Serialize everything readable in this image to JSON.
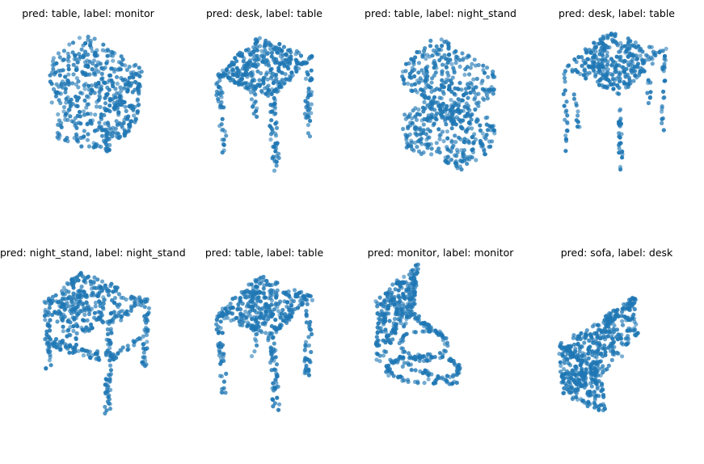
{
  "figure": {
    "point_color": "#1f77b4"
  },
  "chart_data": [
    {
      "type": "scatter",
      "title": "pred: table, label: monitor",
      "shape": "box-solid",
      "axes": "off"
    },
    {
      "type": "scatter",
      "title": "pred: desk, label: table",
      "shape": "table-thick",
      "axes": "off"
    },
    {
      "type": "scatter",
      "title": "pred: table, label: night_stand",
      "shape": "box-split",
      "axes": "off"
    },
    {
      "type": "scatter",
      "title": "pred: desk, label: table",
      "shape": "table-thin",
      "axes": "off"
    },
    {
      "type": "scatter",
      "title": "pred: night_stand, label: night_stand",
      "shape": "stand-frame",
      "axes": "off"
    },
    {
      "type": "scatter",
      "title": "pred: table, label: table",
      "shape": "table-thick",
      "axes": "off"
    },
    {
      "type": "scatter",
      "title": "pred: monitor, label: monitor",
      "shape": "monitor",
      "axes": "off"
    },
    {
      "type": "scatter",
      "title": "pred: sofa, label: desk",
      "shape": "sofa",
      "axes": "off"
    }
  ]
}
